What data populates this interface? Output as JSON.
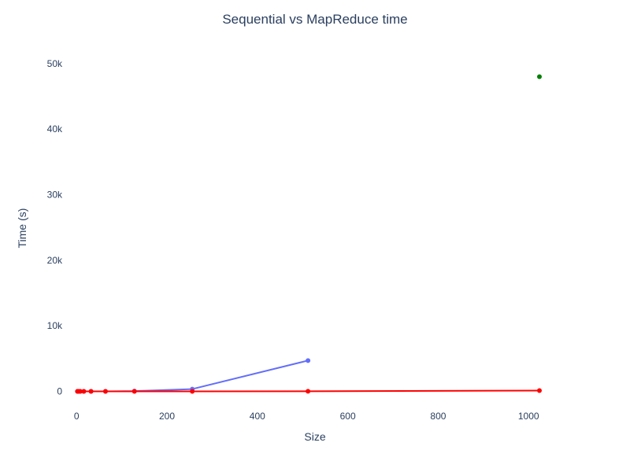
{
  "chart_data": {
    "type": "line",
    "title": "Sequential vs MapReduce time",
    "xlabel": "Size",
    "ylabel": "Time (s)",
    "xlim": [
      -30,
      1085
    ],
    "ylim": [
      -2700,
      52500
    ],
    "x_ticks": [
      0,
      200,
      400,
      600,
      800,
      1000
    ],
    "x_tick_labels": [
      "0",
      "200",
      "400",
      "600",
      "800",
      "1000"
    ],
    "y_ticks": [
      0,
      10000,
      20000,
      30000,
      40000,
      50000
    ],
    "y_tick_labels": [
      "0",
      "10k",
      "20k",
      "30k",
      "40k",
      "50k"
    ],
    "grid": false,
    "legend": "none",
    "series": [
      {
        "color": "#636efa",
        "mode": "lines+markers",
        "x": [
          2,
          4,
          8,
          16,
          32,
          64,
          128,
          256,
          512
        ],
        "y": [
          0,
          0,
          0,
          1,
          2,
          5,
          40,
          350,
          4700
        ]
      },
      {
        "color": "#ff0000",
        "mode": "lines+markers",
        "x": [
          2,
          4,
          8,
          16,
          32,
          64,
          128,
          256,
          512,
          1024
        ],
        "y": [
          0,
          0,
          0,
          0,
          0,
          1,
          2,
          5,
          20,
          120
        ]
      },
      {
        "color": "#008000",
        "mode": "markers",
        "x": [
          1024
        ],
        "y": [
          48000
        ]
      }
    ]
  }
}
